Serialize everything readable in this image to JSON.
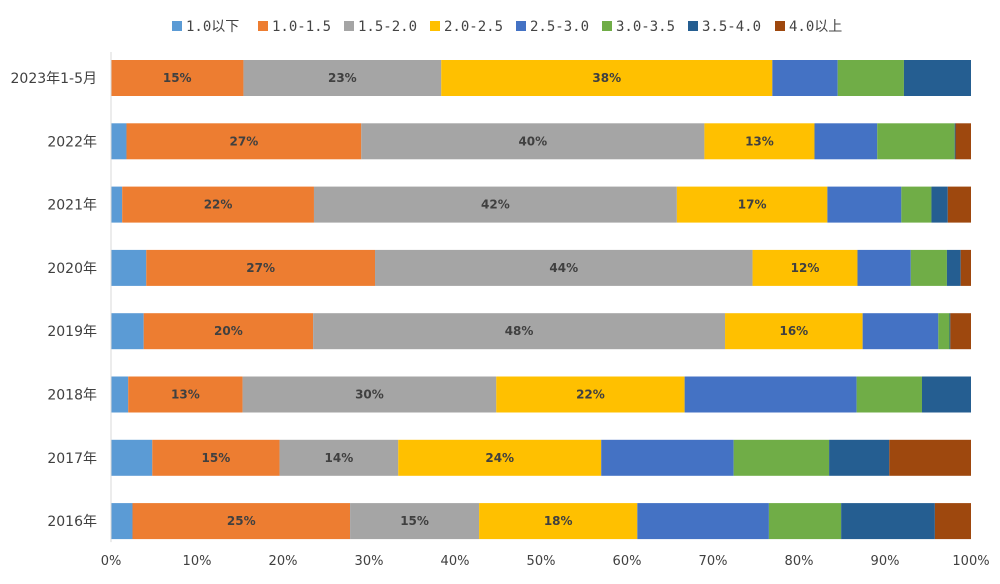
{
  "chart_data": {
    "type": "bar",
    "orientation": "horizontal",
    "stacked": "percent",
    "categories": [
      "2023年1-5月",
      "2022年",
      "2021年",
      "2020年",
      "2019年",
      "2018年",
      "2017年",
      "2016年"
    ],
    "series": [
      {
        "name": "1.0以下",
        "color": "#5B9BD5",
        "values": [
          0,
          1.8,
          1.3,
          4.1,
          3.8,
          2.0,
          4.8,
          2.5
        ]
      },
      {
        "name": "1.0-1.5",
        "color": "#ED7D31",
        "values": [
          15.4,
          27.3,
          22.3,
          26.6,
          19.7,
          13.3,
          14.8,
          25.3
        ]
      },
      {
        "name": "1.5-2.0",
        "color": "#A5A5A5",
        "values": [
          23.0,
          39.9,
          42.2,
          43.9,
          47.9,
          29.5,
          13.8,
          15.0
        ]
      },
      {
        "name": "2.0-2.5",
        "color": "#FFC000",
        "values": [
          38.5,
          12.8,
          17.5,
          12.2,
          16.0,
          21.9,
          23.6,
          18.4
        ]
      },
      {
        "name": "2.5-3.0",
        "color": "#4472C4",
        "values": [
          7.6,
          7.3,
          8.6,
          6.2,
          8.8,
          20.0,
          15.4,
          15.3
        ]
      },
      {
        "name": "3.0-3.5",
        "color": "#70AD47",
        "values": [
          7.7,
          9.0,
          3.5,
          4.2,
          1.3,
          7.6,
          11.1,
          8.4
        ]
      },
      {
        "name": "3.5-4.0",
        "color": "#255E91",
        "values": [
          7.8,
          0.1,
          1.9,
          1.6,
          0.1,
          5.7,
          7.0,
          10.9
        ]
      },
      {
        "name": "4.0以上",
        "color": "#9E480E",
        "values": [
          0,
          1.8,
          2.7,
          1.2,
          2.4,
          0,
          9.5,
          4.2
        ]
      }
    ],
    "data_labels": [
      [
        "",
        "15%",
        "23%",
        "38%",
        "",
        "",
        "",
        ""
      ],
      [
        "",
        "27%",
        "40%",
        "13%",
        "",
        "",
        "",
        ""
      ],
      [
        "",
        "22%",
        "42%",
        "17%",
        "",
        "",
        "",
        ""
      ],
      [
        "",
        "27%",
        "44%",
        "12%",
        "",
        "",
        "",
        ""
      ],
      [
        "",
        "20%",
        "48%",
        "16%",
        "",
        "",
        "",
        ""
      ],
      [
        "",
        "13%",
        "30%",
        "22%",
        "",
        "",
        "",
        ""
      ],
      [
        "",
        "15%",
        "14%",
        "24%",
        "",
        "",
        "",
        ""
      ],
      [
        "",
        "25%",
        "15%",
        "18%",
        "",
        "",
        "",
        ""
      ]
    ],
    "x_ticks": [
      "0%",
      "10%",
      "20%",
      "30%",
      "40%",
      "50%",
      "60%",
      "70%",
      "80%",
      "90%",
      "100%"
    ],
    "xlim": [
      0,
      100
    ],
    "legend_position": "top",
    "grid": false,
    "title": "",
    "xlabel": "",
    "ylabel": ""
  }
}
